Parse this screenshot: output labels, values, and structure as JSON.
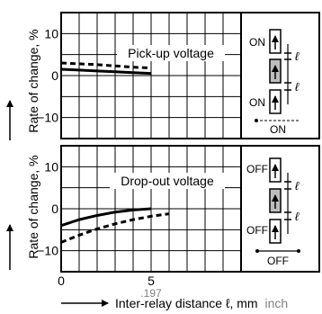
{
  "chart_data": [
    {
      "type": "line",
      "title": "Pick-up voltage",
      "ylabel": "Rate of change, %",
      "xlim": [
        0,
        10
      ],
      "ylim": [
        -15,
        15
      ],
      "yticks": [
        10,
        0,
        -10
      ],
      "grid": true,
      "series": [
        {
          "style": "solid",
          "x": [
            0,
            1,
            2,
            3,
            4,
            5
          ],
          "y": [
            1.5,
            1.3,
            1.1,
            0.9,
            0.7,
            0.5
          ]
        },
        {
          "style": "dashed",
          "x": [
            0,
            1,
            2,
            3,
            4,
            5
          ],
          "y": [
            3.0,
            2.8,
            2.6,
            2.3,
            2.0,
            1.8
          ]
        }
      ]
    },
    {
      "type": "line",
      "title": "Drop-out voltage",
      "ylabel": "Rate of change, %",
      "xlabel": "Inter-relay distance ℓ, mm",
      "xlabel_unit2": "inch",
      "xlim": [
        0,
        10
      ],
      "ylim": [
        -15,
        15
      ],
      "yticks": [
        10,
        0,
        -10
      ],
      "xticks": [
        {
          "value": 0,
          "label": "0"
        },
        {
          "value": 5,
          "label": "5"
        }
      ],
      "x_secondary_tick": {
        "value": 5,
        "label": ".197"
      },
      "grid": true,
      "series": [
        {
          "style": "solid",
          "x": [
            0,
            1,
            2,
            3,
            4,
            5
          ],
          "y": [
            -4.0,
            -2.6,
            -1.6,
            -0.8,
            -0.3,
            0.0
          ]
        },
        {
          "style": "dashed",
          "x": [
            0,
            1,
            2,
            3,
            4,
            5,
            6
          ],
          "y": [
            -8.0,
            -6.3,
            -4.8,
            -3.6,
            -2.6,
            -1.8,
            -1.2
          ]
        }
      ]
    }
  ],
  "diagram": {
    "top_labels": [
      "ON",
      "ON"
    ],
    "top_footer": "ON",
    "bottom_labels": [
      "OFF",
      "OFF"
    ],
    "bottom_footer": "OFF",
    "gap_symbol": "ℓ"
  },
  "colors": {
    "ink": "#000000",
    "grid": "#000000",
    "center_relay": "#bdbdbd",
    "secondary_text": "#808080"
  }
}
